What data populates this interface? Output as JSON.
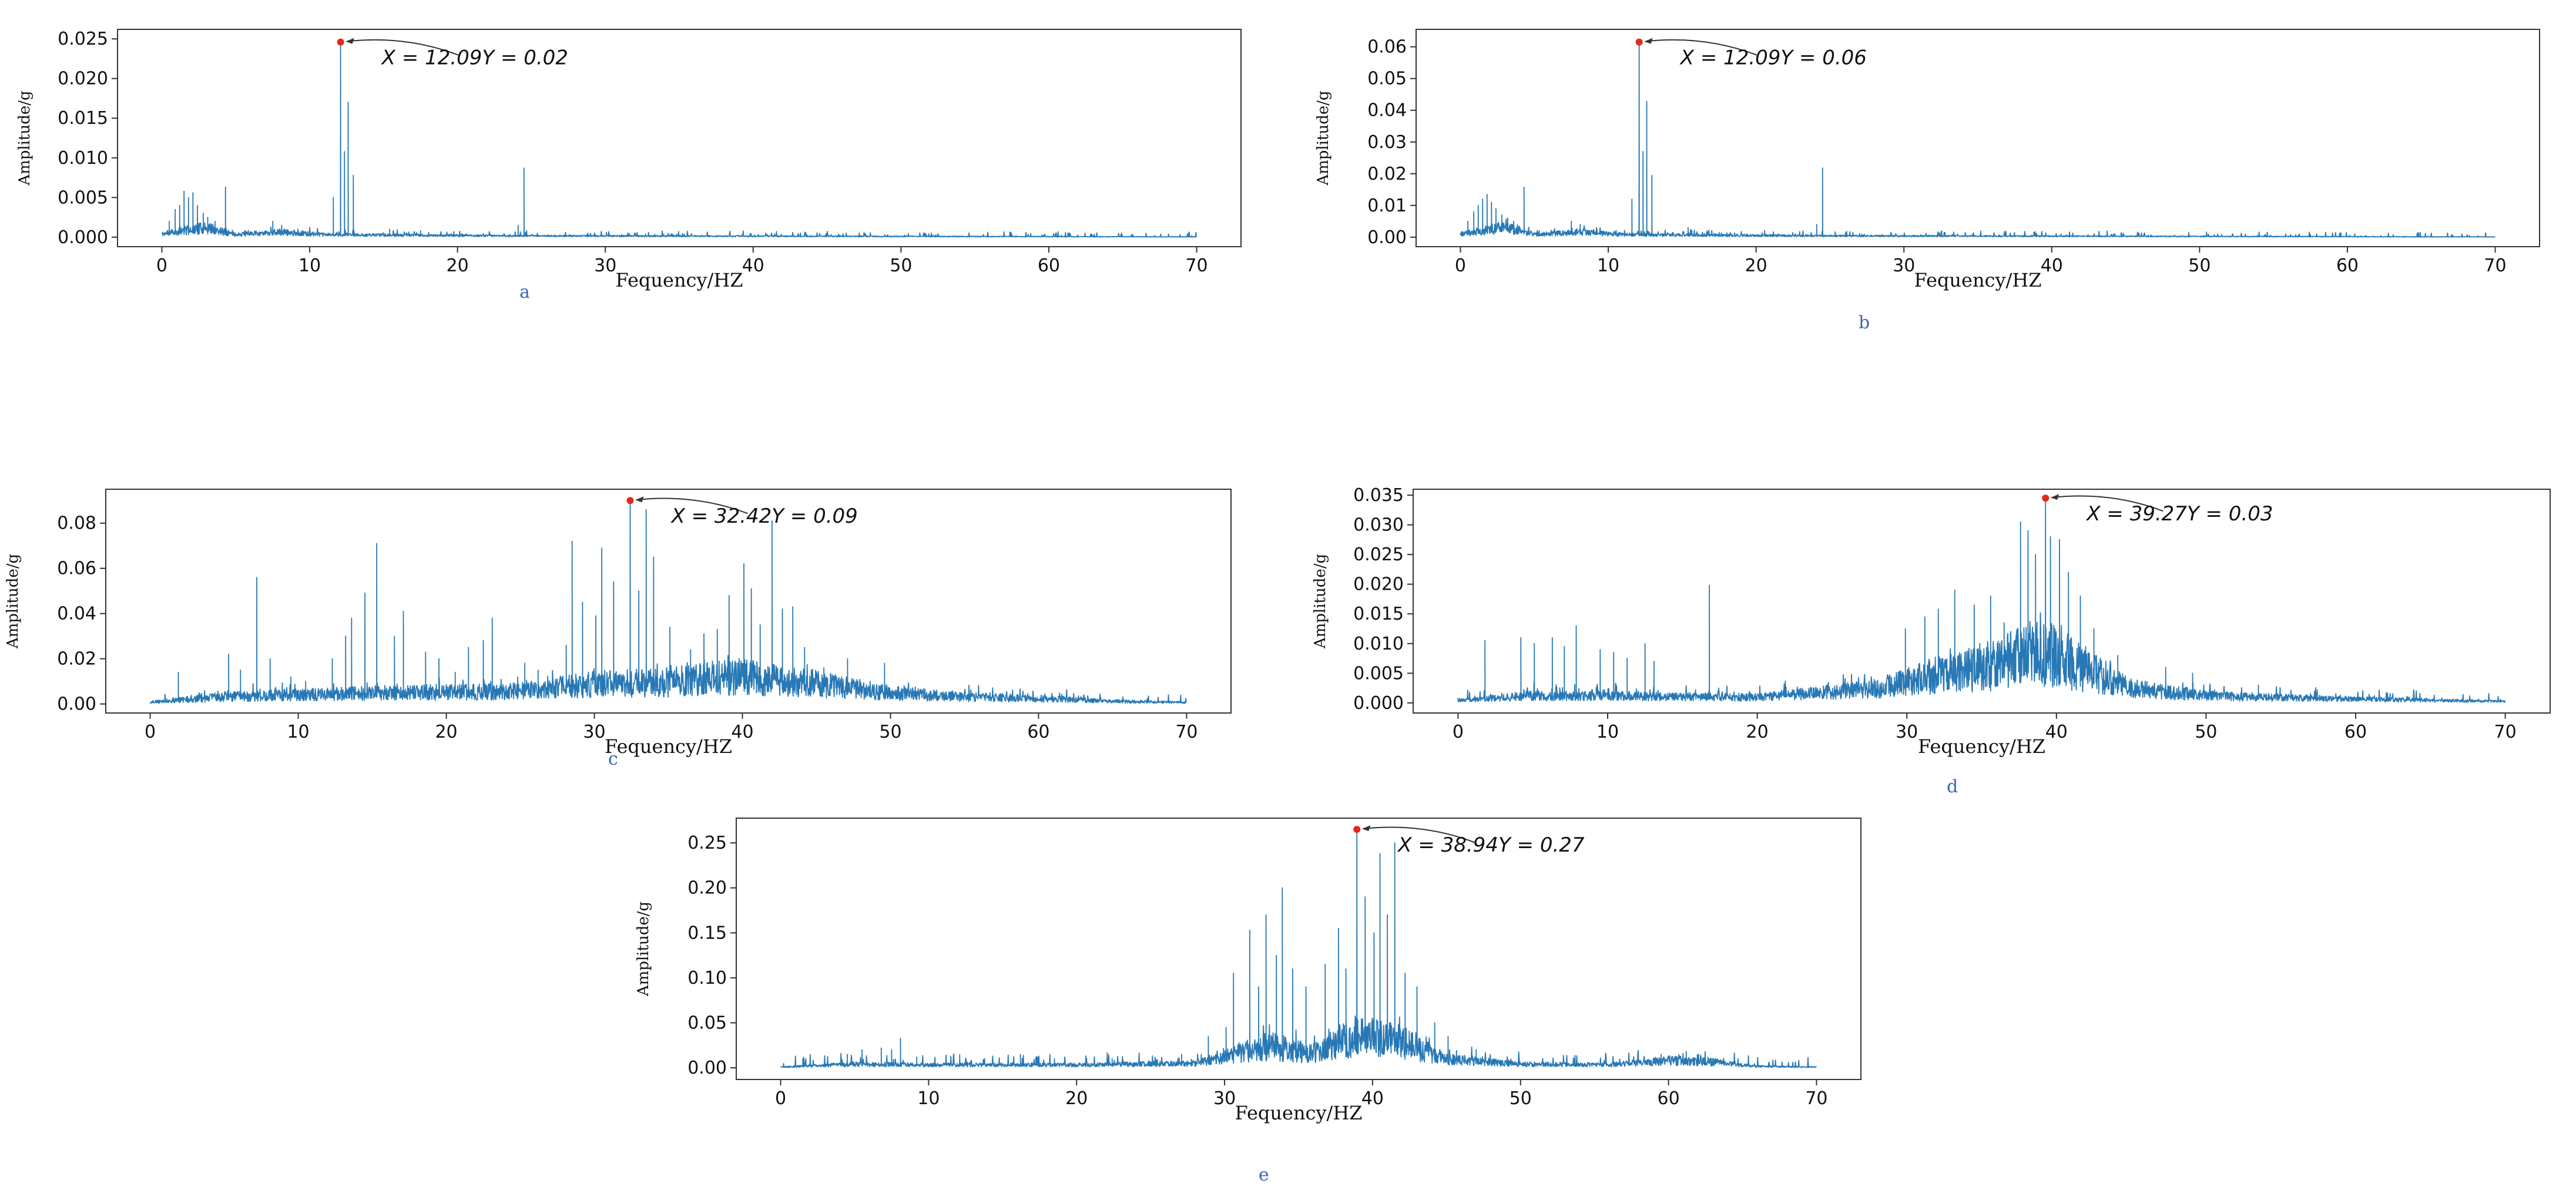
{
  "figure": {
    "colors": {
      "line": "#2878b5",
      "peak": "#e8261d",
      "axis": "#333333",
      "text": "#111111",
      "caption": "#3a66b5"
    }
  },
  "chart_data": [
    {
      "id": "a",
      "type": "line",
      "caption": "a",
      "xlabel": "Fequency/HZ",
      "ylabel": "Amplitude/g",
      "xlim": [
        -3,
        73
      ],
      "ylim": [
        -0.0012,
        0.0262
      ],
      "xticks": [
        0,
        10,
        20,
        30,
        40,
        50,
        60,
        70
      ],
      "xtick_labels": [
        "0",
        "10",
        "20",
        "30",
        "40",
        "50",
        "60",
        "70"
      ],
      "yticks": [
        0,
        0.005,
        0.01,
        0.015,
        0.02,
        0.025
      ],
      "ytick_labels": [
        "0.000",
        "0.005",
        "0.010",
        "0.015",
        "0.020",
        "0.025"
      ],
      "peak": {
        "x": 12.09,
        "y": 0.0246,
        "label": "X = 12.09Y = 0.02"
      },
      "spectrum": {
        "noise": 0.0006,
        "seed": 11,
        "envelope": [
          [
            0,
            0.0005
          ],
          [
            3,
            0.0015
          ],
          [
            5,
            0.0004
          ],
          [
            8,
            0.0008
          ],
          [
            11,
            0.0004
          ],
          [
            16,
            0.0003
          ],
          [
            24,
            0.0002
          ],
          [
            70,
            5e-05
          ]
        ]
      },
      "spikes": [
        [
          0.5,
          0.002
        ],
        [
          0.9,
          0.0035
        ],
        [
          1.2,
          0.004
        ],
        [
          1.5,
          0.0058
        ],
        [
          1.8,
          0.005
        ],
        [
          2.1,
          0.0056
        ],
        [
          2.4,
          0.004
        ],
        [
          2.8,
          0.003
        ],
        [
          3.1,
          0.0025
        ],
        [
          3.6,
          0.002
        ],
        [
          4.3,
          0.0063
        ],
        [
          7.5,
          0.002
        ],
        [
          8.1,
          0.0015
        ],
        [
          9.2,
          0.001
        ],
        [
          11.6,
          0.005
        ],
        [
          12.09,
          0.0246
        ],
        [
          12.35,
          0.0108
        ],
        [
          12.6,
          0.017
        ],
        [
          12.95,
          0.0078
        ],
        [
          15.4,
          0.001
        ],
        [
          17.5,
          0.0006
        ],
        [
          24.1,
          0.0015
        ],
        [
          24.5,
          0.0087
        ],
        [
          57.5,
          0.0003
        ]
      ]
    },
    {
      "id": "b",
      "type": "line",
      "caption": "b",
      "xlabel": "Fequency/HZ",
      "ylabel": "Amplitude/g",
      "xlim": [
        -3,
        73
      ],
      "ylim": [
        -0.003,
        0.0655
      ],
      "xticks": [
        0,
        10,
        20,
        30,
        40,
        50,
        60,
        70
      ],
      "xtick_labels": [
        "0",
        "10",
        "20",
        "30",
        "40",
        "50",
        "60",
        "70"
      ],
      "yticks": [
        0,
        0.01,
        0.02,
        0.03,
        0.04,
        0.05,
        0.06
      ],
      "ytick_labels": [
        "0.00",
        "0.01",
        "0.02",
        "0.03",
        "0.04",
        "0.05",
        "0.06"
      ],
      "peak": {
        "x": 12.09,
        "y": 0.0615,
        "label": "X = 12.09Y = 0.06"
      },
      "spectrum": {
        "noise": 0.0015,
        "seed": 23,
        "envelope": [
          [
            0,
            0.0012
          ],
          [
            3,
            0.004
          ],
          [
            5,
            0.001
          ],
          [
            8,
            0.002
          ],
          [
            11,
            0.001
          ],
          [
            16,
            0.0008
          ],
          [
            24,
            0.0005
          ],
          [
            70,
            0.0001
          ]
        ]
      },
      "spikes": [
        [
          0.5,
          0.005
        ],
        [
          0.9,
          0.008
        ],
        [
          1.2,
          0.01
        ],
        [
          1.5,
          0.012
        ],
        [
          1.8,
          0.0135
        ],
        [
          2.1,
          0.011
        ],
        [
          2.4,
          0.009
        ],
        [
          2.8,
          0.007
        ],
        [
          3.2,
          0.006
        ],
        [
          3.6,
          0.005
        ],
        [
          4.3,
          0.0158
        ],
        [
          7.5,
          0.005
        ],
        [
          8.1,
          0.004
        ],
        [
          9.2,
          0.003
        ],
        [
          11.6,
          0.012
        ],
        [
          12.09,
          0.0615
        ],
        [
          12.35,
          0.027
        ],
        [
          12.6,
          0.0428
        ],
        [
          12.95,
          0.0195
        ],
        [
          15.4,
          0.003
        ],
        [
          17.5,
          0.0015
        ],
        [
          24.1,
          0.004
        ],
        [
          24.5,
          0.0218
        ],
        [
          57.5,
          0.0008
        ]
      ]
    },
    {
      "id": "c",
      "type": "line",
      "caption": "c",
      "xlabel": "Fequency/HZ",
      "ylabel": "Amplitude/g",
      "xlim": [
        -3,
        73
      ],
      "ylim": [
        -0.004,
        0.095
      ],
      "xticks": [
        0,
        10,
        20,
        30,
        40,
        50,
        60,
        70
      ],
      "xtick_labels": [
        "0",
        "10",
        "20",
        "30",
        "40",
        "50",
        "60",
        "70"
      ],
      "yticks": [
        0,
        0.02,
        0.04,
        0.06,
        0.08
      ],
      "ytick_labels": [
        "0.00",
        "0.02",
        "0.04",
        "0.06",
        "0.08"
      ],
      "peak": {
        "x": 32.42,
        "y": 0.09,
        "label": "X = 32.42Y = 0.09"
      },
      "spectrum": {
        "noise": 0.0035,
        "seed": 37,
        "envelope": [
          [
            0,
            0.001
          ],
          [
            5,
            0.004
          ],
          [
            15,
            0.006
          ],
          [
            25,
            0.007
          ],
          [
            30,
            0.011
          ],
          [
            35,
            0.012
          ],
          [
            40,
            0.015
          ],
          [
            44,
            0.012
          ],
          [
            50,
            0.006
          ],
          [
            55,
            0.004
          ],
          [
            60,
            0.003
          ],
          [
            65,
            0.0015
          ],
          [
            70,
            0.0008
          ]
        ]
      },
      "spikes": [
        [
          1.9,
          0.014
        ],
        [
          5.3,
          0.022
        ],
        [
          6.1,
          0.015
        ],
        [
          7.2,
          0.056
        ],
        [
          8.1,
          0.02
        ],
        [
          9.5,
          0.012
        ],
        [
          10.5,
          0.01
        ],
        [
          12.3,
          0.02
        ],
        [
          13.2,
          0.03
        ],
        [
          13.6,
          0.038
        ],
        [
          14.5,
          0.049
        ],
        [
          15.3,
          0.071
        ],
        [
          16.5,
          0.03
        ],
        [
          17.1,
          0.041
        ],
        [
          18.6,
          0.023
        ],
        [
          19.5,
          0.02
        ],
        [
          20.6,
          0.014
        ],
        [
          21.5,
          0.025
        ],
        [
          22.5,
          0.028
        ],
        [
          23.1,
          0.038
        ],
        [
          25.3,
          0.018
        ],
        [
          26.2,
          0.015
        ],
        [
          28.1,
          0.026
        ],
        [
          28.5,
          0.072
        ],
        [
          29.2,
          0.045
        ],
        [
          30.1,
          0.039
        ],
        [
          30.5,
          0.069
        ],
        [
          31.3,
          0.054
        ],
        [
          32.42,
          0.09
        ],
        [
          33.0,
          0.05
        ],
        [
          33.5,
          0.086
        ],
        [
          34.0,
          0.065
        ],
        [
          35.1,
          0.034
        ],
        [
          36.5,
          0.024
        ],
        [
          37.4,
          0.031
        ],
        [
          38.3,
          0.033
        ],
        [
          39.1,
          0.048
        ],
        [
          40.1,
          0.062
        ],
        [
          40.6,
          0.051
        ],
        [
          41.2,
          0.035
        ],
        [
          42.0,
          0.081
        ],
        [
          42.7,
          0.042
        ],
        [
          43.4,
          0.043
        ],
        [
          44.2,
          0.025
        ],
        [
          45.5,
          0.016
        ],
        [
          47.1,
          0.02
        ],
        [
          49.6,
          0.018
        ]
      ]
    },
    {
      "id": "d",
      "type": "line",
      "caption": "d",
      "xlabel": "Fequency/HZ",
      "ylabel": "Amplitude/g",
      "xlim": [
        -3,
        73
      ],
      "ylim": [
        -0.0017,
        0.036
      ],
      "xticks": [
        0,
        10,
        20,
        30,
        40,
        50,
        60,
        70
      ],
      "xtick_labels": [
        "0",
        "10",
        "20",
        "30",
        "40",
        "50",
        "60",
        "70"
      ],
      "yticks": [
        0,
        0.005,
        0.01,
        0.015,
        0.02,
        0.025,
        0.03,
        0.035
      ],
      "ytick_labels": [
        "0.000",
        "0.005",
        "0.010",
        "0.015",
        "0.020",
        "0.025",
        "0.030",
        "0.035"
      ],
      "peak": {
        "x": 39.27,
        "y": 0.0345,
        "label": "X = 39.27Y = 0.03"
      },
      "spectrum": {
        "noise": 0.0016,
        "seed": 51,
        "envelope": [
          [
            0,
            0.0005
          ],
          [
            5,
            0.0015
          ],
          [
            20,
            0.0012
          ],
          [
            28,
            0.003
          ],
          [
            32,
            0.006
          ],
          [
            36,
            0.008
          ],
          [
            39,
            0.011
          ],
          [
            42,
            0.007
          ],
          [
            45,
            0.003
          ],
          [
            50,
            0.0015
          ],
          [
            60,
            0.0008
          ],
          [
            70,
            0.0003
          ]
        ]
      },
      "spikes": [
        [
          1.8,
          0.0105
        ],
        [
          4.2,
          0.011
        ],
        [
          5.1,
          0.01
        ],
        [
          6.3,
          0.011
        ],
        [
          7.1,
          0.0095
        ],
        [
          7.9,
          0.013
        ],
        [
          9.5,
          0.009
        ],
        [
          10.4,
          0.0085
        ],
        [
          11.3,
          0.0075
        ],
        [
          12.5,
          0.01
        ],
        [
          13.1,
          0.007
        ],
        [
          16.8,
          0.0198
        ],
        [
          29.9,
          0.0125
        ],
        [
          31.2,
          0.0145
        ],
        [
          32.1,
          0.0158
        ],
        [
          33.2,
          0.019
        ],
        [
          34.5,
          0.0165
        ],
        [
          35.6,
          0.018
        ],
        [
          36.5,
          0.0135
        ],
        [
          37.6,
          0.0305
        ],
        [
          38.1,
          0.029
        ],
        [
          38.6,
          0.025
        ],
        [
          39.27,
          0.0345
        ],
        [
          39.6,
          0.028
        ],
        [
          40.2,
          0.0275
        ],
        [
          40.8,
          0.022
        ],
        [
          41.6,
          0.018
        ],
        [
          42.5,
          0.0125
        ],
        [
          44.1,
          0.008
        ],
        [
          47.3,
          0.006
        ],
        [
          49.1,
          0.005
        ],
        [
          53.5,
          0.003
        ]
      ]
    },
    {
      "id": "e",
      "type": "line",
      "caption": "e",
      "xlabel": "Fequency/HZ",
      "ylabel": "Amplitude/g",
      "xlim": [
        -3,
        73
      ],
      "ylim": [
        -0.013,
        0.2775
      ],
      "xticks": [
        0,
        10,
        20,
        30,
        40,
        50,
        60,
        70
      ],
      "xtick_labels": [
        "0",
        "10",
        "20",
        "30",
        "40",
        "50",
        "60",
        "70"
      ],
      "yticks": [
        0,
        0.05,
        0.1,
        0.15,
        0.2,
        0.25
      ],
      "ytick_labels": [
        "0.00",
        "0.05",
        "0.10",
        "0.15",
        "0.20",
        "0.25"
      ],
      "peak": {
        "x": 38.94,
        "y": 0.265,
        "label": "X = 38.94Y = 0.27"
      },
      "spectrum": {
        "noise": 0.012,
        "seed": 67,
        "envelope": [
          [
            0,
            0.001
          ],
          [
            5,
            0.005
          ],
          [
            10,
            0.004
          ],
          [
            20,
            0.004
          ],
          [
            28,
            0.006
          ],
          [
            30,
            0.015
          ],
          [
            33,
            0.03
          ],
          [
            36,
            0.02
          ],
          [
            39,
            0.045
          ],
          [
            42,
            0.035
          ],
          [
            45,
            0.012
          ],
          [
            50,
            0.005
          ],
          [
            56,
            0.004
          ],
          [
            60,
            0.01
          ],
          [
            63,
            0.008
          ],
          [
            66,
            0.002
          ],
          [
            70,
            0.001
          ]
        ]
      },
      "spikes": [
        [
          1.5,
          0.01
        ],
        [
          4.5,
          0.015
        ],
        [
          5.5,
          0.02
        ],
        [
          6.8,
          0.022
        ],
        [
          7.5,
          0.02
        ],
        [
          8.1,
          0.033
        ],
        [
          9.2,
          0.012
        ],
        [
          12.1,
          0.012
        ],
        [
          16.2,
          0.015
        ],
        [
          18.5,
          0.01
        ],
        [
          22.4,
          0.01
        ],
        [
          27.1,
          0.015
        ],
        [
          28.9,
          0.035
        ],
        [
          30.1,
          0.045
        ],
        [
          30.6,
          0.105
        ],
        [
          31.7,
          0.153
        ],
        [
          32.3,
          0.09
        ],
        [
          32.8,
          0.17
        ],
        [
          33.5,
          0.125
        ],
        [
          33.9,
          0.2
        ],
        [
          34.6,
          0.11
        ],
        [
          35.5,
          0.09
        ],
        [
          36.8,
          0.115
        ],
        [
          37.7,
          0.155
        ],
        [
          38.2,
          0.11
        ],
        [
          38.94,
          0.265
        ],
        [
          39.5,
          0.19
        ],
        [
          40.1,
          0.15
        ],
        [
          40.5,
          0.238
        ],
        [
          41.0,
          0.17
        ],
        [
          41.5,
          0.25
        ],
        [
          42.2,
          0.105
        ],
        [
          43.0,
          0.09
        ],
        [
          44.2,
          0.05
        ],
        [
          45.1,
          0.035
        ],
        [
          47.0,
          0.02
        ],
        [
          59.5,
          0.015
        ],
        [
          61.2,
          0.018
        ]
      ]
    }
  ]
}
